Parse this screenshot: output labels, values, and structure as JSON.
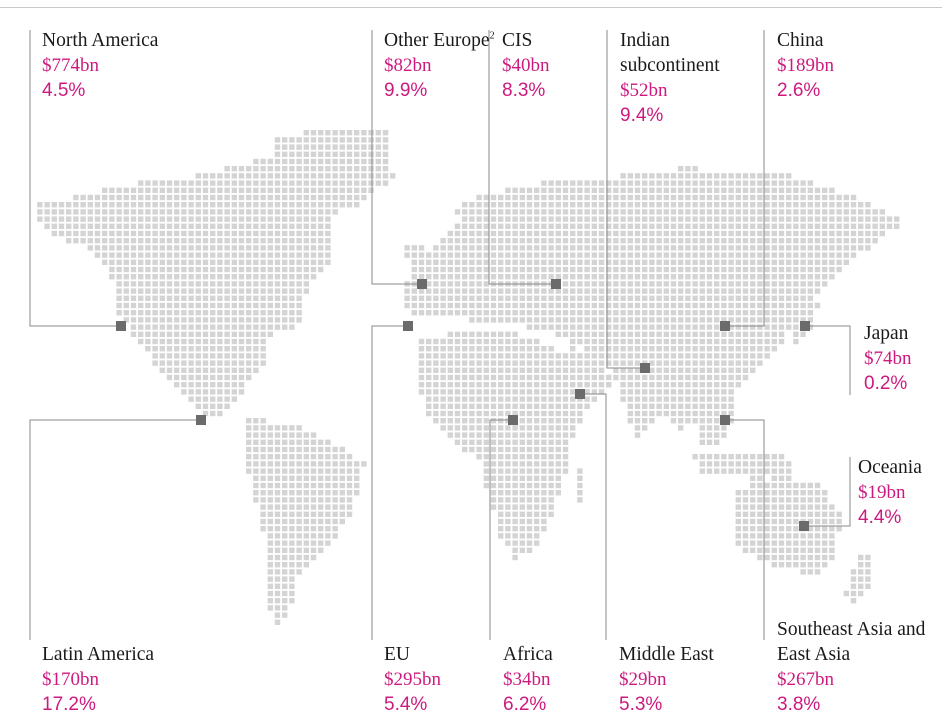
{
  "map": {
    "land_dot_color": "#d4d4d4",
    "marker_color": "#6b6b6b",
    "leader_color": "#8a8a8a",
    "value_color": "#cc1a7f"
  },
  "regions": [
    {
      "id": "north-america",
      "name": "North America",
      "footnote": "",
      "value": "$774bn",
      "growth": "4.5%"
    },
    {
      "id": "other-europe",
      "name": "Other Europe",
      "footnote": "2",
      "value": "$82bn",
      "growth": "9.9%"
    },
    {
      "id": "cis",
      "name": "CIS",
      "footnote": "",
      "value": "$40bn",
      "growth": "8.3%"
    },
    {
      "id": "indian-subcontinent",
      "name": "Indian subcontinent",
      "footnote": "",
      "value": "$52bn",
      "growth": "9.4%"
    },
    {
      "id": "china",
      "name": "China",
      "footnote": "",
      "value": "$189bn",
      "growth": "2.6%"
    },
    {
      "id": "japan",
      "name": "Japan",
      "footnote": "",
      "value": "$74bn",
      "growth": "0.2%"
    },
    {
      "id": "oceania",
      "name": "Oceania",
      "footnote": "",
      "value": "$19bn",
      "growth": "4.4%"
    },
    {
      "id": "latin-america",
      "name": "Latin America",
      "footnote": "",
      "value": "$170bn",
      "growth": "17.2%"
    },
    {
      "id": "eu",
      "name": "EU",
      "footnote": "",
      "value": "$295bn",
      "growth": "5.4%"
    },
    {
      "id": "africa",
      "name": "Africa",
      "footnote": "",
      "value": "$34bn",
      "growth": "6.2%"
    },
    {
      "id": "middle-east",
      "name": "Middle East",
      "footnote": "",
      "value": "$29bn",
      "growth": "5.3%"
    },
    {
      "id": "southeast-asia-east-asia",
      "name": "Southeast Asia and East Asia",
      "footnote": "",
      "value": "$267bn",
      "growth": "3.8%"
    }
  ]
}
